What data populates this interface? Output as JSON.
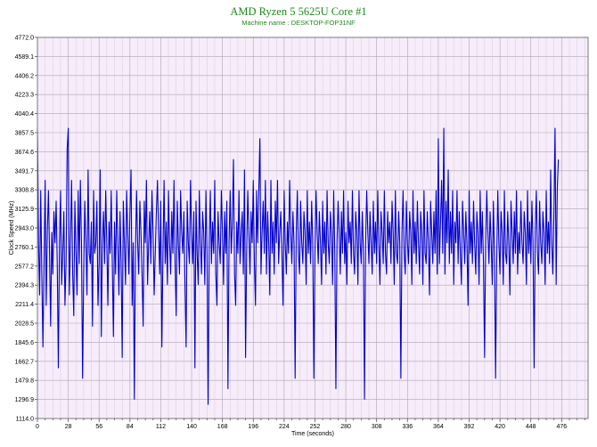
{
  "chart_data": {
    "type": "line",
    "title": "AMD Ryzen 5 5625U Core #1",
    "subtitle": "Machine name : DESKTOP-FOP31NF",
    "xlabel": "Time (seconds)",
    "ylabel": "Clock Speed (MHz)",
    "xlim": [
      0,
      500
    ],
    "ylim": [
      1114.0,
      4772.0
    ],
    "x_ticks": [
      "0",
      "28",
      "56",
      "84",
      "112",
      "140",
      "168",
      "196",
      "224",
      "252",
      "280",
      "308",
      "336",
      "364",
      "392",
      "420",
      "448",
      "476"
    ],
    "y_ticks": [
      "4772.0",
      "4589.1",
      "4406.2",
      "4223.3",
      "4040.4",
      "3857.5",
      "3674.6",
      "3491.7",
      "3308.8",
      "3125.9",
      "2943.0",
      "2760.1",
      "2577.2",
      "2394.3",
      "2211.4",
      "2028.5",
      "1845.6",
      "1662.7",
      "1479.8",
      "1296.9",
      "1114.0"
    ],
    "grid": true,
    "legend": "none",
    "series": [
      {
        "color": "#0000cc",
        "x_step": 1,
        "values": [
          3900,
          2800,
          2300,
          3300,
          2500,
          1800,
          2600,
          3400,
          2200,
          2900,
          3300,
          2700,
          2000,
          2900,
          2500,
          3100,
          2800,
          3200,
          2600,
          1600,
          2800,
          3300,
          2400,
          2700,
          3100,
          2200,
          2600,
          3700,
          3900,
          2300,
          2800,
          3400,
          2500,
          2100,
          3200,
          2700,
          2300,
          3300,
          2600,
          3400,
          2800,
          1500,
          2500,
          3200,
          2800,
          2300,
          3500,
          2700,
          2600,
          3000,
          2000,
          3300,
          2700,
          2800,
          3200,
          2200,
          2600,
          3500,
          1900,
          2800,
          3100,
          2600,
          3300,
          2800,
          2200,
          3000,
          2700,
          3300,
          2600,
          1900,
          3000,
          2500,
          3300,
          2800,
          2300,
          3100,
          2600,
          1700,
          3200,
          2800,
          2400,
          3300,
          2900,
          2500,
          3100,
          3500,
          2200,
          2800,
          1300,
          2700,
          3300,
          2800,
          2500,
          3200,
          2900,
          2500,
          2000,
          3200,
          2800,
          3400,
          2400,
          2800,
          3100,
          2600,
          3300,
          2900,
          2300,
          2700,
          3100,
          3400,
          2900,
          2500,
          3200,
          1800,
          2700,
          3400,
          2600,
          3000,
          2400,
          3300,
          2800,
          2500,
          3100,
          2700,
          3400,
          2600,
          2100,
          3200,
          2800,
          2500,
          3300,
          2900,
          2700,
          3100,
          2400,
          1800,
          3200,
          2800,
          2600,
          3400,
          2900,
          2600,
          3100,
          1600,
          3200,
          2700,
          2400,
          3300,
          2800,
          2500,
          3100,
          2900,
          2400,
          3300,
          2700,
          1250,
          2800,
          3300,
          2600,
          3000,
          2700,
          3400,
          2500,
          2200,
          3100,
          2800,
          2600,
          3300,
          2900,
          2400,
          3100,
          2700,
          3200,
          1400,
          2800,
          3300,
          2700,
          3000,
          3600,
          2500,
          2200,
          3000,
          2700,
          3300,
          2600,
          2900,
          3100,
          2500,
          3500,
          1700,
          2700,
          3300,
          2900,
          2500,
          3100,
          2800,
          3400,
          2600,
          2200,
          3300,
          2800,
          3300,
          3800,
          2500,
          2900,
          3200,
          2700,
          3400,
          2500,
          3100,
          2800,
          2300,
          3400,
          2700,
          3000,
          2500,
          3200,
          2800,
          3400,
          2600,
          2900,
          3100,
          2700,
          2200,
          3300,
          2800,
          2500,
          3000,
          2700,
          3400,
          2900,
          2600,
          3100,
          2800,
          1500,
          2900,
          3300,
          2700,
          2500,
          3200,
          2800,
          2600,
          3100,
          2900,
          2400,
          3300,
          2700,
          3000,
          2600,
          3200,
          2800,
          1500,
          2700,
          3300,
          2900,
          2600,
          3100,
          2800,
          2400,
          3200,
          2700,
          3000,
          2500,
          3300,
          2800,
          2600,
          3100,
          2900,
          2400,
          3300,
          2700,
          1400,
          2800,
          3200,
          2900,
          2500,
          3100,
          2700,
          3300,
          2600,
          2900,
          2400,
          3200,
          2800,
          3000,
          2600,
          3300,
          2700,
          2500,
          3100,
          2900,
          2400,
          3300,
          2800,
          2600,
          3100,
          2700,
          1300,
          2800,
          3300,
          2900,
          2600,
          3100,
          2800,
          2500,
          3200,
          2700,
          3000,
          2600,
          3300,
          2800,
          2400,
          3100,
          2900,
          2600,
          3300,
          2700,
          2500,
          3100,
          2800,
          3000,
          2600,
          3200,
          2900,
          2400,
          3300,
          2700,
          2600,
          3100,
          2800,
          1500,
          2900,
          3300,
          2700,
          2500,
          3200,
          2800,
          2600,
          3100,
          2900,
          2400,
          3300,
          2700,
          3000,
          2600,
          3200,
          2800,
          2500,
          3100,
          2900,
          2400,
          3300,
          2700,
          2600,
          3100,
          2800,
          2300,
          3200,
          2900,
          2600,
          3100,
          2700,
          3300,
          2500,
          3800,
          2600,
          3000,
          3400,
          2700,
          3900,
          2500,
          3200,
          2800,
          3500,
          2600,
          3100,
          2700,
          3300,
          2400,
          3000,
          2800,
          3300,
          2600,
          3100,
          2700,
          2400,
          3200,
          2900,
          2600,
          3100,
          2800,
          2200,
          3300,
          2700,
          3000,
          2600,
          3200,
          2800,
          2500,
          3100,
          2900,
          2400,
          3300,
          2700,
          3100,
          2600,
          1700,
          2800,
          3300,
          2900,
          2600,
          3100,
          2800,
          2400,
          3200,
          2700,
          1500,
          2600,
          3300,
          2800,
          2500,
          3100,
          2900,
          2400,
          3300,
          2700,
          2600,
          3100,
          2800,
          2300,
          3200,
          2900,
          2600,
          3100,
          2700,
          3300,
          2500,
          2900,
          2700,
          3200,
          2800,
          2600,
          3100,
          2900,
          2400,
          3300,
          2700,
          3000,
          2600,
          3200,
          2800,
          1600,
          2900,
          3300,
          2700,
          2500,
          3200,
          2800,
          2600,
          3100,
          2900,
          2400,
          3300,
          2700,
          3000,
          2600,
          3500,
          2800,
          2500,
          3100,
          3900,
          2400,
          3300,
          3600
        ]
      }
    ]
  }
}
